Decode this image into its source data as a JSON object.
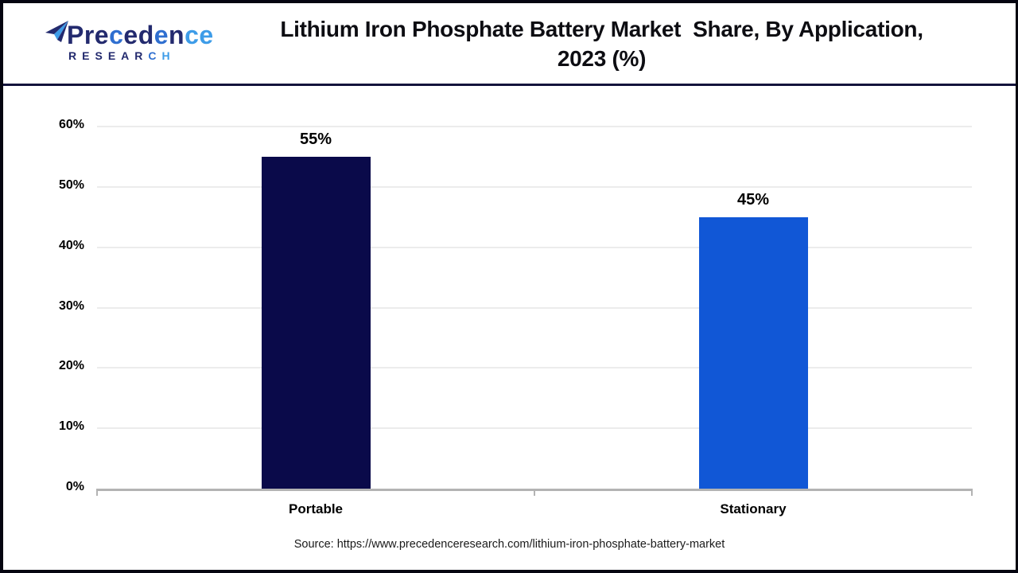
{
  "header": {
    "logo": {
      "brand": "Precedence",
      "subbrand": "RESEARCH"
    },
    "title_line1": "Lithium Iron Phosphate Battery Market  Share, By Application,",
    "title_line2": "2023 (%)"
  },
  "chart_data": {
    "type": "bar",
    "title": "Lithium Iron Phosphate Battery Market Share, By Application, 2023 (%)",
    "categories": [
      "Portable",
      "Stationary"
    ],
    "values": [
      55,
      45
    ],
    "value_labels": [
      "55%",
      "45%"
    ],
    "xlabel": "",
    "ylabel": "",
    "ylim": [
      0,
      60
    ],
    "ytick_step": 10,
    "ytick_labels": [
      "0%",
      "10%",
      "20%",
      "30%",
      "40%",
      "50%",
      "60%"
    ],
    "bar_colors": [
      "#0a0a4a",
      "#1157d6"
    ],
    "grid": true,
    "legend_position": "none"
  },
  "footer": {
    "source": "Source: https://www.precedenceresearch.com/lithium-iron-phosphate-battery-market"
  },
  "colors": {
    "bar_portable": "#0a0a4a",
    "bar_stationary": "#1157d6",
    "logo_navy": "#232a6e",
    "logo_medium_blue": "#2f6fd0",
    "logo_light_blue": "#3d9ce8",
    "header_separator": "#14143c",
    "gridline": "#ececec",
    "axis_line": "#b3b3b3"
  }
}
